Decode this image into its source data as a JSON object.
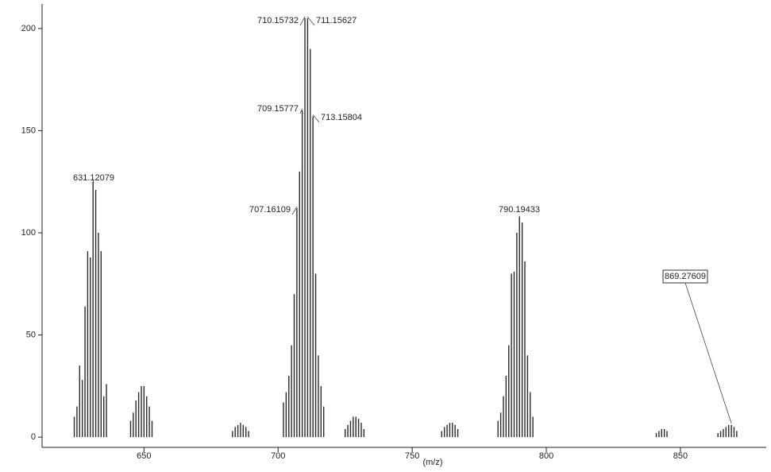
{
  "chart_data": {
    "type": "stick",
    "x_label": "(m/z)",
    "color": "#2a2a2a",
    "xlim": [
      612,
      882
    ],
    "xticks": [
      650,
      700,
      750,
      800,
      850
    ],
    "ylim": [
      -5,
      212
    ],
    "yticks": [
      0,
      50,
      100,
      150,
      200
    ],
    "x": [
      624,
      625,
      626,
      627,
      628,
      629,
      630,
      631,
      632,
      633,
      634,
      635,
      636,
      645,
      646,
      647,
      648,
      649,
      650,
      651,
      652,
      653,
      683,
      684,
      685,
      686,
      687,
      688,
      689,
      702,
      703,
      704,
      705,
      706,
      707,
      708,
      709,
      710,
      711,
      712,
      713,
      714,
      715,
      716,
      717,
      725,
      726,
      727,
      728,
      729,
      730,
      731,
      732,
      761,
      762,
      763,
      764,
      765,
      766,
      767,
      782,
      783,
      784,
      785,
      786,
      787,
      788,
      789,
      790,
      791,
      792,
      793,
      794,
      795,
      841,
      842,
      843,
      844,
      845,
      864,
      865,
      866,
      867,
      868,
      869,
      870,
      871
    ],
    "values": [
      10,
      15,
      35,
      28,
      64,
      91,
      88,
      125,
      121,
      100,
      91,
      20,
      26,
      8,
      12,
      18,
      22,
      25,
      25,
      20,
      15,
      8,
      3,
      5,
      6,
      7,
      6,
      5,
      3,
      17,
      22,
      30,
      45,
      70,
      112,
      130,
      160,
      205,
      205,
      190,
      157,
      80,
      40,
      25,
      15,
      4,
      6,
      8,
      10,
      10,
      9,
      7,
      4,
      3,
      5,
      6,
      7,
      7,
      6,
      4,
      8,
      12,
      20,
      30,
      45,
      80,
      81,
      100,
      108,
      105,
      86,
      40,
      22,
      10,
      2,
      3,
      4,
      4,
      3,
      2,
      3,
      4,
      5,
      6,
      6,
      5,
      3
    ],
    "peak_labels": [
      {
        "label": "631.12079",
        "x": 631,
        "y": 125
      },
      {
        "label": "707.16109",
        "x": 707,
        "y": 112
      },
      {
        "label": "709.15777",
        "x": 709,
        "y": 160
      },
      {
        "label": "710.15732",
        "x": 710,
        "y": 205
      },
      {
        "label": "711.15627",
        "x": 711,
        "y": 205
      },
      {
        "label": "713.15804",
        "x": 713,
        "y": 157
      },
      {
        "label": "790.19433",
        "x": 790,
        "y": 108
      },
      {
        "label": "869.27609",
        "x": 869,
        "y": 6
      }
    ]
  }
}
